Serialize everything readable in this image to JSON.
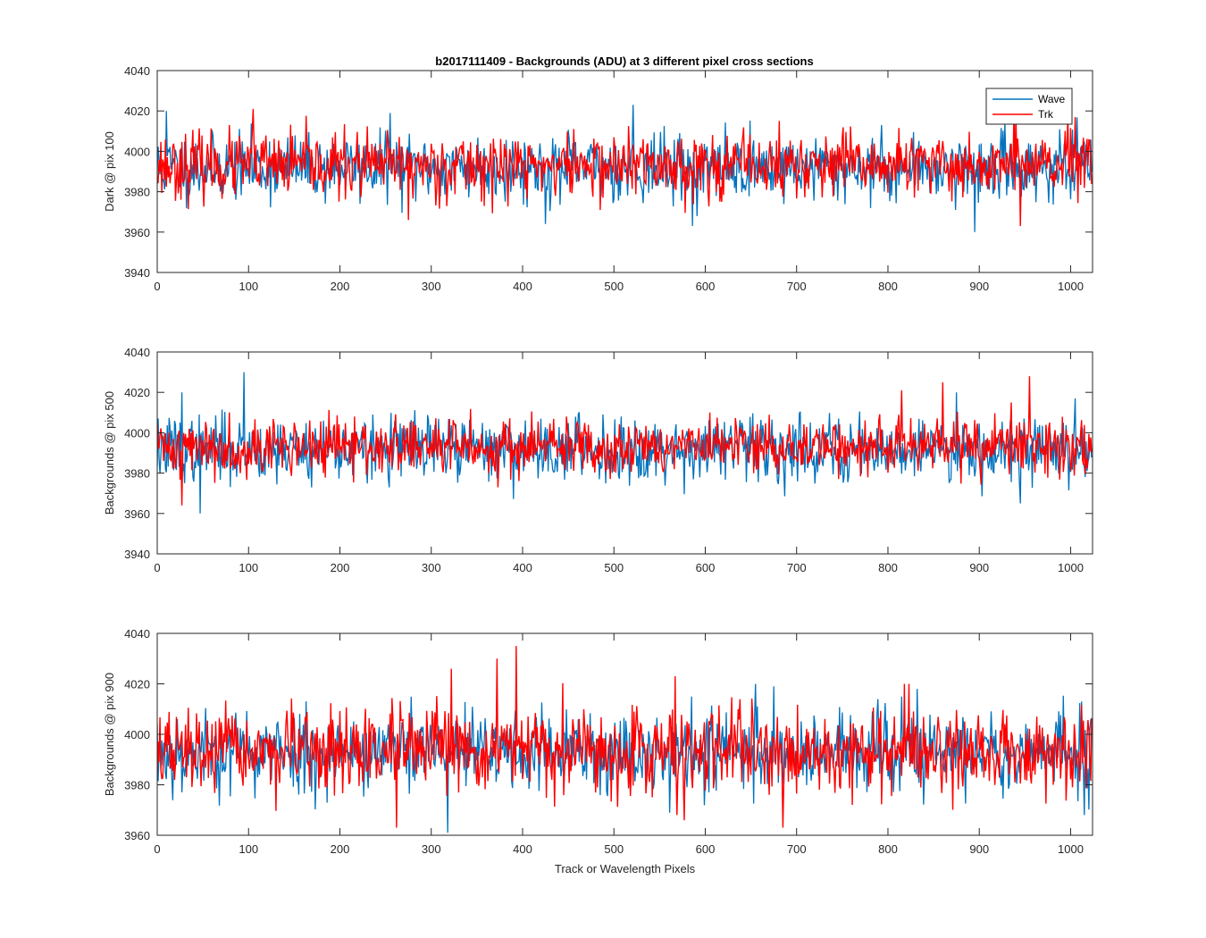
{
  "title": "b2017111409 - Backgrounds (ADU) at 3 different pixel cross sections",
  "colors": {
    "wave": "#0072BD",
    "trk": "#FF0000",
    "axis": "#262626",
    "background": "#FFFFFF"
  },
  "legend": {
    "items": [
      "Wave",
      "Trk"
    ],
    "location": "top-right of first panel"
  },
  "chart_data": [
    {
      "type": "line",
      "ylabel": "Dark @ pix 100",
      "xlabel": "",
      "xlim": [
        0,
        1024
      ],
      "ylim": [
        3940,
        4040
      ],
      "xticks": [
        "0",
        "100",
        "200",
        "300",
        "400",
        "500",
        "600",
        "700",
        "800",
        "900",
        "1000"
      ],
      "yticks": [
        "3940",
        "3960",
        "3980",
        "4000",
        "4020",
        "4040"
      ],
      "grid": false,
      "legend": true,
      "n_points": 1024,
      "series": [
        {
          "name": "Wave",
          "color": "#0072BD",
          "mean": 3992,
          "std": 8,
          "min": 3960,
          "max": 4023,
          "seed": 11,
          "peaks": [
            [
              10,
              4020
            ],
            [
              255,
              4019
            ],
            [
              521,
              4023
            ],
            [
              895,
              3960
            ],
            [
              425,
              3964
            ],
            [
              586,
              3963
            ]
          ]
        },
        {
          "name": "Trk",
          "color": "#FF0000",
          "mean": 3993,
          "std": 8,
          "min": 3963,
          "max": 4021,
          "seed": 23,
          "peaks": [
            [
              105,
              4021
            ],
            [
              938,
              4020
            ],
            [
              940,
              4019
            ],
            [
              945,
              3963
            ],
            [
              275,
              3966
            ],
            [
              1005,
              4017
            ]
          ]
        }
      ]
    },
    {
      "type": "line",
      "ylabel": "Backgrounds @ pix 500",
      "xlabel": "",
      "xlim": [
        0,
        1024
      ],
      "ylim": [
        3940,
        4040
      ],
      "xticks": [
        "0",
        "100",
        "200",
        "300",
        "400",
        "500",
        "600",
        "700",
        "800",
        "900",
        "1000"
      ],
      "yticks": [
        "3940",
        "3960",
        "3980",
        "4000",
        "4020",
        "4040"
      ],
      "grid": false,
      "legend": false,
      "n_points": 1024,
      "series": [
        {
          "name": "Wave",
          "color": "#0072BD",
          "mean": 3992,
          "std": 8,
          "min": 3960,
          "max": 4030,
          "seed": 37,
          "peaks": [
            [
              95,
              4030
            ],
            [
              27,
              4020
            ],
            [
              47,
              3960
            ],
            [
              1005,
              4017
            ],
            [
              875,
              4020
            ],
            [
              945,
              3965
            ]
          ]
        },
        {
          "name": "Trk",
          "color": "#FF0000",
          "mean": 3993,
          "std": 7,
          "min": 3964,
          "max": 4028,
          "seed": 41,
          "peaks": [
            [
              955,
              4028
            ],
            [
              860,
              4025
            ],
            [
              815,
              4021
            ],
            [
              27,
              3964
            ],
            [
              935,
              4015
            ]
          ]
        }
      ]
    },
    {
      "type": "line",
      "ylabel": "Backgrounds @ pix 900",
      "xlabel": "Track or Wavelength Pixels",
      "xlim": [
        0,
        1024
      ],
      "ylim": [
        3960,
        4040
      ],
      "xticks": [
        "0",
        "100",
        "200",
        "300",
        "400",
        "500",
        "600",
        "700",
        "800",
        "900",
        "1000"
      ],
      "yticks": [
        "3960",
        "3980",
        "4000",
        "4020",
        "4040"
      ],
      "grid": false,
      "legend": false,
      "n_points": 1024,
      "series": [
        {
          "name": "Wave",
          "color": "#0072BD",
          "mean": 3993,
          "std": 8,
          "min": 3961,
          "max": 4020,
          "seed": 53,
          "peaks": [
            [
              318,
              3961
            ],
            [
              655,
              4020
            ],
            [
              675,
              4019
            ],
            [
              832,
              4018
            ],
            [
              1012,
              4013
            ],
            [
              1015,
              3968
            ]
          ]
        },
        {
          "name": "Trk",
          "color": "#FF0000",
          "mean": 3993,
          "std": 8,
          "min": 3963,
          "max": 4035,
          "seed": 67,
          "peaks": [
            [
              393,
              4035
            ],
            [
              372,
              4030
            ],
            [
              322,
              4026
            ],
            [
              567,
              4023
            ],
            [
              818,
              4020
            ],
            [
              823,
              4020
            ],
            [
              262,
              3963
            ],
            [
              685,
              3963
            ]
          ]
        }
      ]
    }
  ]
}
